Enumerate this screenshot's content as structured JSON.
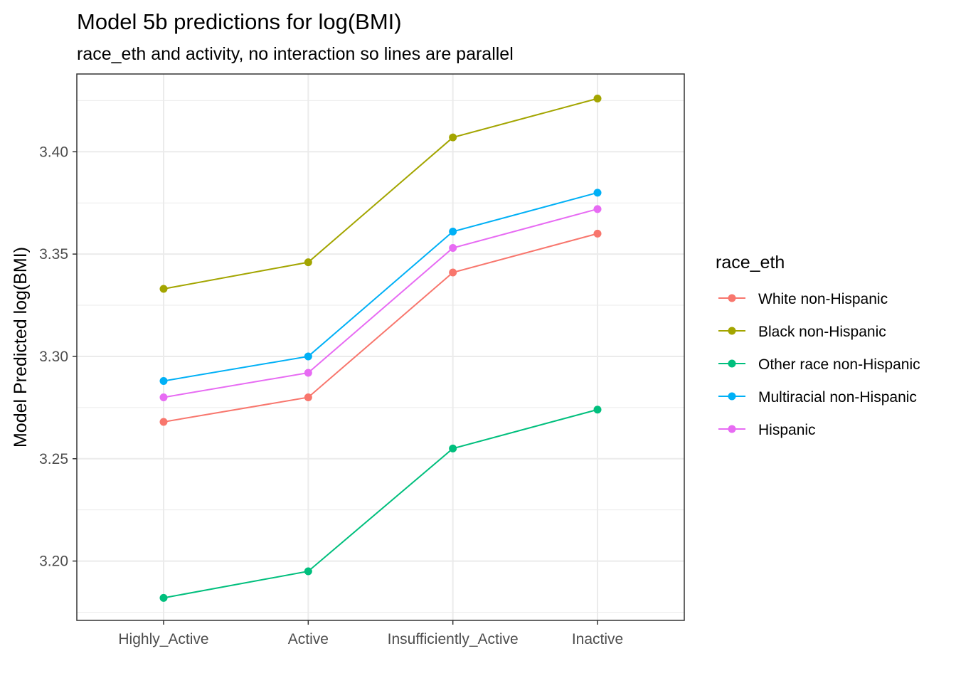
{
  "chart_data": {
    "type": "line",
    "title": "Model 5b predictions for log(BMI)",
    "subtitle": "race_eth and activity, no interaction so lines are parallel",
    "xlabel": "",
    "ylabel": "Model Predicted log(BMI)",
    "categories": [
      "Highly_Active",
      "Active",
      "Insufficiently_Active",
      "Inactive"
    ],
    "ylim": [
      3.171,
      3.438
    ],
    "yticks": [
      "3.20",
      "3.25",
      "3.30",
      "3.35",
      "3.40"
    ],
    "grid": true,
    "legend_title": "race_eth",
    "legend_position": "right",
    "series": [
      {
        "name": "White non-Hispanic",
        "color": "#F8766D",
        "values": [
          3.268,
          3.28,
          3.341,
          3.36
        ]
      },
      {
        "name": "Black non-Hispanic",
        "color": "#A3A500",
        "values": [
          3.333,
          3.346,
          3.407,
          3.426
        ]
      },
      {
        "name": "Other race non-Hispanic",
        "color": "#00BF7D",
        "values": [
          3.182,
          3.195,
          3.255,
          3.274
        ]
      },
      {
        "name": "Multiracial non-Hispanic",
        "color": "#00B0F6",
        "values": [
          3.288,
          3.3,
          3.361,
          3.38
        ]
      },
      {
        "name": "Hispanic",
        "color": "#E76BF3",
        "values": [
          3.28,
          3.292,
          3.353,
          3.372
        ]
      }
    ]
  }
}
